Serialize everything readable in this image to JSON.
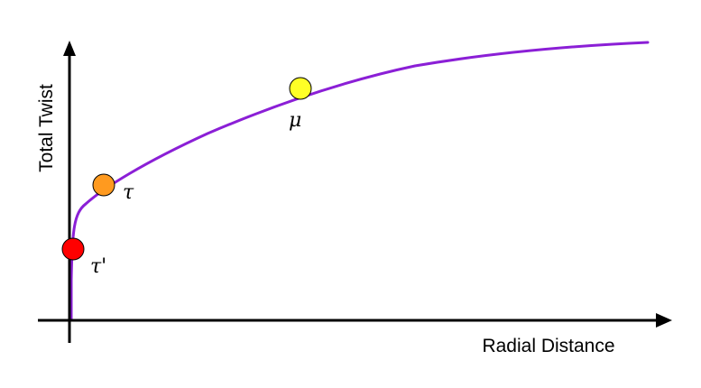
{
  "figure": {
    "x_axis_label": "Radial Distance",
    "y_axis_label": "Total Twist",
    "curve": {
      "name": "total-twist-curve",
      "color": "#8b1fd6",
      "shape": "monotonic increasing, steep near origin, saturating at large radius"
    },
    "points": [
      {
        "id": "tau-prime",
        "label": "τ'",
        "color": "#ff0000"
      },
      {
        "id": "tau",
        "label": "τ",
        "color": "#ff9a1f"
      },
      {
        "id": "mu",
        "label": "μ",
        "color": "#ffff26"
      }
    ],
    "axis_color": "#000000"
  }
}
